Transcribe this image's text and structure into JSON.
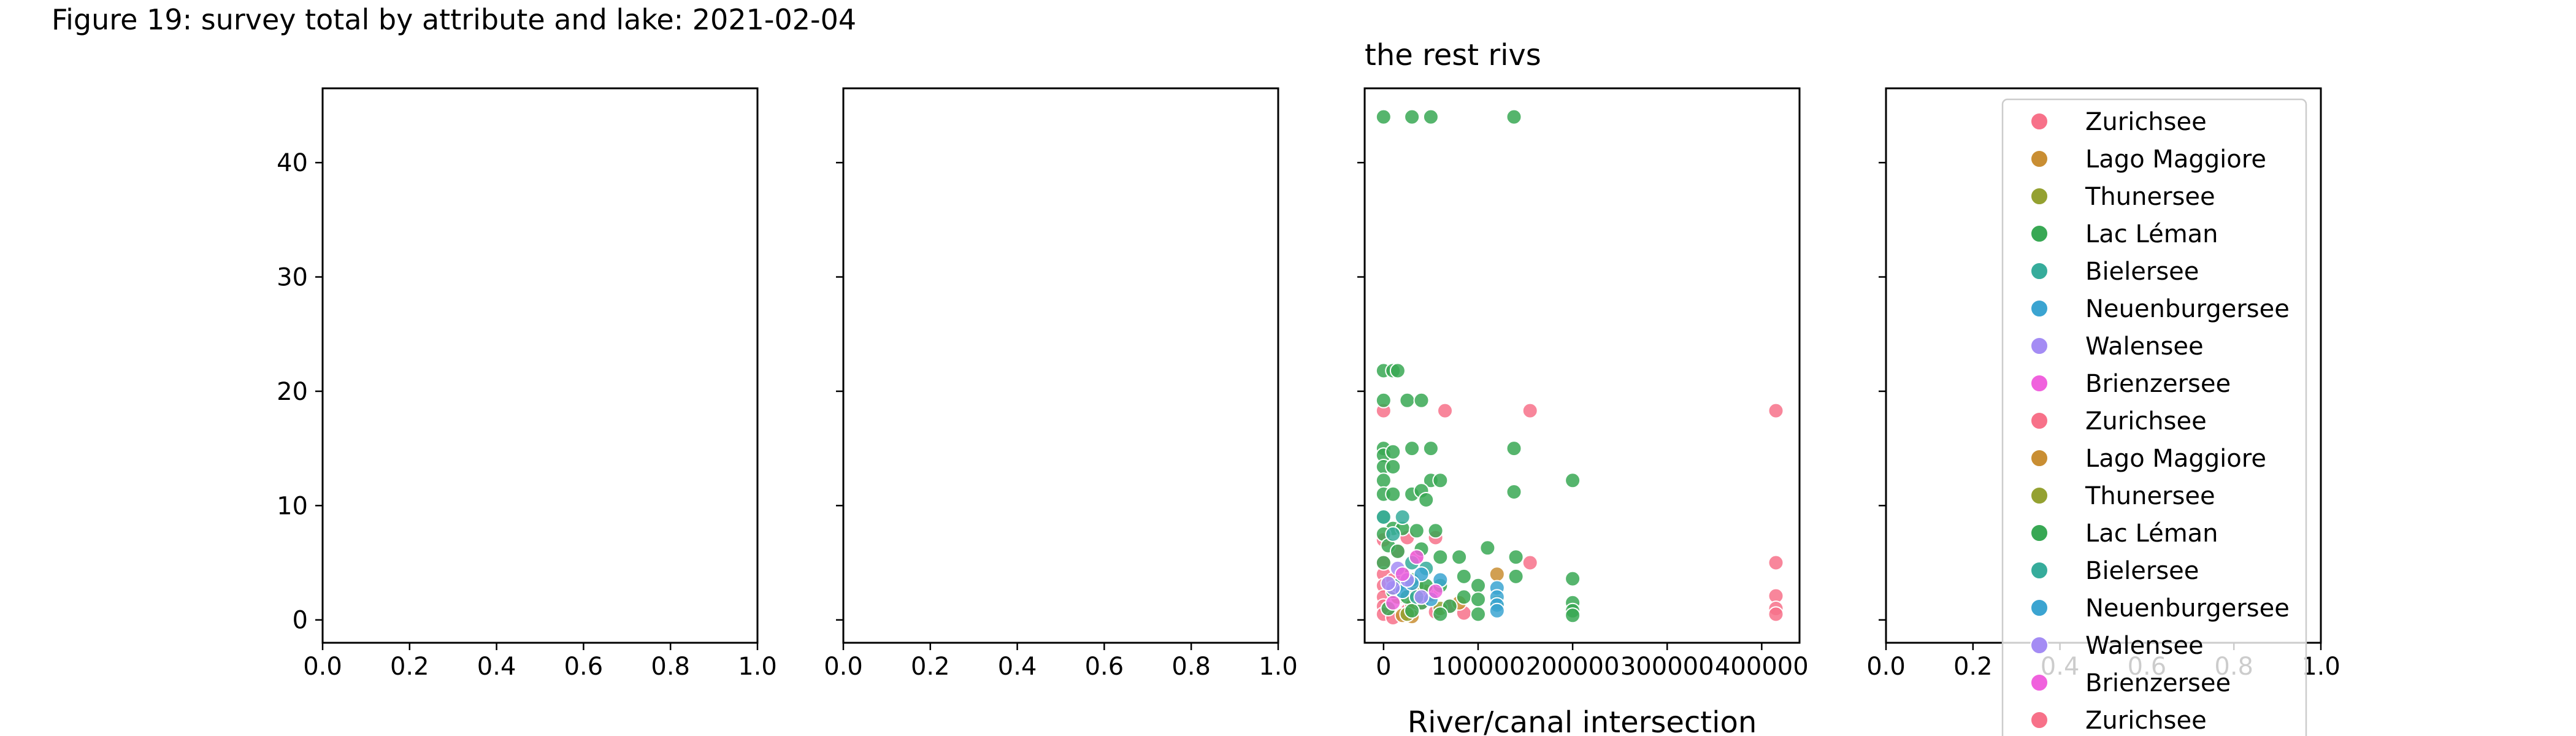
{
  "figure": {
    "suptitle": "Figure 19: survey total by attribute and lake: 2021-02-04"
  },
  "chart_data": [
    {
      "type": "scatter",
      "panel": 1,
      "title": "",
      "xlabel": "",
      "ylabel": "",
      "xlim": [
        0.0,
        1.0
      ],
      "ylim": [
        -2,
        46.5
      ],
      "xticks": [
        0.0,
        0.2,
        0.4,
        0.6,
        0.8,
        1.0
      ],
      "xtick_labels": [
        "0.0",
        "0.2",
        "0.4",
        "0.6",
        "0.8",
        "1.0"
      ],
      "yticks": [
        0,
        10,
        20,
        30,
        40
      ],
      "ytick_labels": [
        "0",
        "10",
        "20",
        "30",
        "40"
      ],
      "series": []
    },
    {
      "type": "scatter",
      "panel": 2,
      "title": "",
      "xlabel": "",
      "ylabel": "",
      "xlim": [
        0.0,
        1.0
      ],
      "ylim": [
        -2,
        46.5
      ],
      "xticks": [
        0.0,
        0.2,
        0.4,
        0.6,
        0.8,
        1.0
      ],
      "xtick_labels": [
        "0.0",
        "0.2",
        "0.4",
        "0.6",
        "0.8",
        "1.0"
      ],
      "yticks": [
        0,
        10,
        20,
        30,
        40
      ],
      "series": []
    },
    {
      "type": "scatter",
      "panel": 3,
      "title": "the rest rivs",
      "xlabel": "River/canal intersection",
      "ylabel": "",
      "xlim": [
        -20000,
        440000
      ],
      "ylim": [
        -2,
        46.5
      ],
      "xticks": [
        0,
        100000,
        200000,
        300000,
        400000
      ],
      "xtick_labels": [
        "0",
        "100000",
        "200000",
        "300000",
        "400000"
      ],
      "yticks": [
        0,
        10,
        20,
        30,
        40
      ],
      "series": [
        {
          "name": "Zurichsee",
          "color": "#f77189",
          "points": [
            [
              0,
              18.3
            ],
            [
              65000,
              18.3
            ],
            [
              155000,
              18.3
            ],
            [
              415000,
              18.3
            ],
            [
              415000,
              5.0
            ],
            [
              415000,
              2.1
            ],
            [
              415000,
              1.0
            ],
            [
              415000,
              0.5
            ],
            [
              155000,
              5.0
            ],
            [
              55000,
              7.2
            ],
            [
              25000,
              7.2
            ],
            [
              0,
              7.0
            ],
            [
              0,
              5.0
            ],
            [
              0,
              4.0
            ],
            [
              0,
              3.0
            ],
            [
              0,
              2.0
            ],
            [
              0,
              1.2
            ],
            [
              0,
              0.5
            ],
            [
              10000,
              0.2
            ],
            [
              25000,
              0.8
            ],
            [
              40000,
              1.5
            ],
            [
              55000,
              0.7
            ],
            [
              70000,
              1.2
            ],
            [
              85000,
              0.6
            ],
            [
              10000,
              3.5
            ],
            [
              25000,
              2.5
            ],
            [
              50000,
              2.2
            ],
            [
              35000,
              5.5
            ],
            [
              15000,
              6.0
            ]
          ]
        },
        {
          "name": "Lago Maggiore",
          "color": "#c98e33",
          "points": [
            [
              120000,
              4.0
            ],
            [
              30000,
              1.2
            ],
            [
              30000,
              0.3
            ],
            [
              45000,
              2.5
            ],
            [
              80000,
              1.5
            ],
            [
              20000,
              0.4
            ]
          ]
        },
        {
          "name": "Thunersee",
          "color": "#94a131",
          "points": [
            [
              15000,
              2.0
            ],
            [
              35000,
              3.0
            ],
            [
              25000,
              0.5
            ],
            [
              60000,
              1.0
            ]
          ]
        },
        {
          "name": "Lac Léman",
          "color": "#38a854",
          "points": [
            [
              0,
              44
            ],
            [
              30000,
              44
            ],
            [
              50000,
              44
            ],
            [
              138000,
              44
            ],
            [
              0,
              21.8
            ],
            [
              10000,
              21.8
            ],
            [
              15000,
              21.8
            ],
            [
              0,
              19.2
            ],
            [
              25000,
              19.2
            ],
            [
              40000,
              19.2
            ],
            [
              0,
              15.0
            ],
            [
              0,
              14.4
            ],
            [
              10000,
              14.7
            ],
            [
              30000,
              15.0
            ],
            [
              50000,
              15.0
            ],
            [
              138000,
              15.0
            ],
            [
              0,
              13.4
            ],
            [
              10000,
              13.4
            ],
            [
              0,
              12.2
            ],
            [
              50000,
              12.2
            ],
            [
              60000,
              12.2
            ],
            [
              200000,
              12.2
            ],
            [
              0,
              11.0
            ],
            [
              10000,
              11.0
            ],
            [
              30000,
              11.0
            ],
            [
              40000,
              11.3
            ],
            [
              45000,
              10.5
            ],
            [
              138000,
              11.2
            ],
            [
              0,
              9.0
            ],
            [
              10000,
              8.0
            ],
            [
              20000,
              8.0
            ],
            [
              35000,
              7.8
            ],
            [
              55000,
              7.8
            ],
            [
              0,
              7.5
            ],
            [
              5000,
              6.5
            ],
            [
              15000,
              6.0
            ],
            [
              40000,
              6.2
            ],
            [
              60000,
              5.5
            ],
            [
              80000,
              5.5
            ],
            [
              110000,
              6.3
            ],
            [
              140000,
              5.5
            ],
            [
              0,
              5.0
            ],
            [
              20000,
              4.0
            ],
            [
              30000,
              3.5
            ],
            [
              45000,
              3.0
            ],
            [
              60000,
              3.0
            ],
            [
              85000,
              3.8
            ],
            [
              100000,
              3.0
            ],
            [
              140000,
              3.8
            ],
            [
              200000,
              3.6
            ],
            [
              10000,
              2.5
            ],
            [
              25000,
              2.0
            ],
            [
              40000,
              1.5
            ],
            [
              70000,
              1.2
            ],
            [
              85000,
              2.0
            ],
            [
              100000,
              1.8
            ],
            [
              120000,
              1.5
            ],
            [
              200000,
              1.5
            ],
            [
              200000,
              0.8
            ],
            [
              200000,
              0.4
            ],
            [
              30000,
              0.8
            ],
            [
              60000,
              0.5
            ],
            [
              100000,
              0.5
            ],
            [
              5000,
              1.0
            ]
          ]
        },
        {
          "name": "Bielersee",
          "color": "#36ac9b",
          "points": [
            [
              0,
              9.0
            ],
            [
              20000,
              9.0
            ],
            [
              10000,
              7.5
            ],
            [
              30000,
              5.0
            ],
            [
              15000,
              3.0
            ],
            [
              45000,
              4.5
            ],
            [
              35000,
              2.0
            ]
          ]
        },
        {
          "name": "Neuenburgersee",
          "color": "#3ba4d1",
          "points": [
            [
              120000,
              2.8
            ],
            [
              120000,
              2.0
            ],
            [
              120000,
              1.3
            ],
            [
              120000,
              0.8
            ],
            [
              60000,
              3.5
            ],
            [
              40000,
              4.0
            ],
            [
              20000,
              2.5
            ],
            [
              50000,
              1.8
            ],
            [
              30000,
              3.2
            ]
          ]
        },
        {
          "name": "Walensee",
          "color": "#a48cf4",
          "points": [
            [
              15000,
              4.5
            ],
            [
              25000,
              3.5
            ],
            [
              10000,
              2.8
            ],
            [
              40000,
              2.0
            ],
            [
              5000,
              3.2
            ]
          ]
        },
        {
          "name": "Brienzersee",
          "color": "#f061dd",
          "points": [
            [
              20000,
              4.0
            ],
            [
              35000,
              5.5
            ],
            [
              10000,
              1.5
            ],
            [
              55000,
              2.5
            ]
          ]
        }
      ]
    },
    {
      "type": "scatter",
      "panel": 4,
      "title": "",
      "xlabel": "",
      "ylabel": "",
      "xlim": [
        0.0,
        1.0
      ],
      "ylim": [
        -2,
        46.5
      ],
      "xticks": [
        0.0,
        0.2,
        0.4,
        0.6,
        0.8,
        1.0
      ],
      "xtick_labels": [
        "0.0",
        "0.2",
        "0.4",
        "0.6",
        "0.8",
        "1.0"
      ],
      "yticks": [
        0,
        10,
        20,
        30,
        40
      ],
      "series": []
    }
  ],
  "legend": {
    "placement": "upper-right of panel 4, extending below the figure",
    "entries": [
      {
        "label": "Zurichsee",
        "color": "#f77189"
      },
      {
        "label": "Lago Maggiore",
        "color": "#c98e33"
      },
      {
        "label": "Thunersee",
        "color": "#94a131"
      },
      {
        "label": "Lac Léman",
        "color": "#38a854"
      },
      {
        "label": "Bielersee",
        "color": "#36ac9b"
      },
      {
        "label": "Neuenburgersee",
        "color": "#3ba4d1"
      },
      {
        "label": "Walensee",
        "color": "#a48cf4"
      },
      {
        "label": "Brienzersee",
        "color": "#f061dd"
      },
      {
        "label": "Zurichsee",
        "color": "#f77189"
      },
      {
        "label": "Lago Maggiore",
        "color": "#c98e33"
      },
      {
        "label": "Thunersee",
        "color": "#94a131"
      },
      {
        "label": "Lac Léman",
        "color": "#38a854"
      },
      {
        "label": "Bielersee",
        "color": "#36ac9b"
      },
      {
        "label": "Neuenburgersee",
        "color": "#3ba4d1"
      },
      {
        "label": "Walensee",
        "color": "#a48cf4"
      },
      {
        "label": "Brienzersee",
        "color": "#f061dd"
      },
      {
        "label": "Zurichsee",
        "color": "#f77189"
      }
    ]
  }
}
